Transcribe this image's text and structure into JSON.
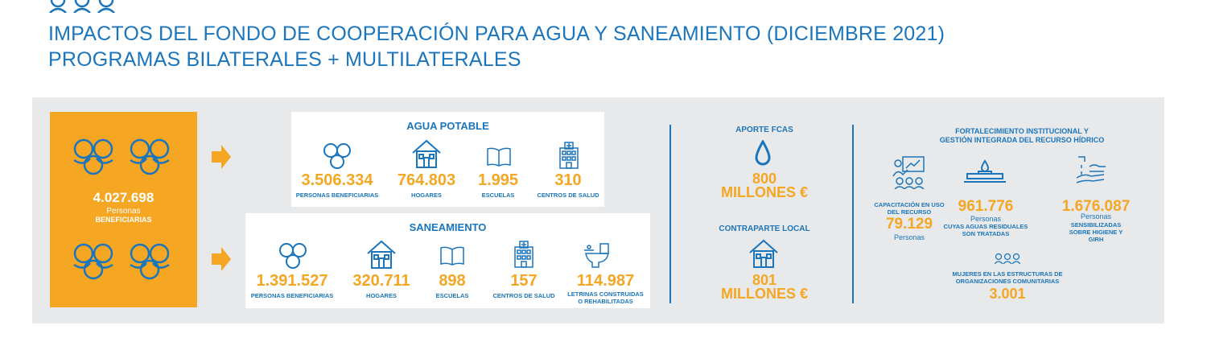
{
  "header": {
    "title_line1": "IMPACTOS DEL FONDO DE COOPERACIÓN PARA AGUA Y SANEAMIENTO (DICIEMBRE 2021)",
    "title_line2": "PROGRAMAS BILATERALES + MULTILATERALES",
    "icon": "people-group-icon"
  },
  "colors": {
    "blue": "#1b75bc",
    "orange": "#f5a623",
    "panel": "#e8e9eb"
  },
  "total": {
    "value": "4.027.698",
    "unit": "Personas",
    "label": "BENEFICIARIAS"
  },
  "agua": {
    "title": "AGUA POTABLE",
    "items": [
      {
        "value": "3.506.334",
        "label": "PERSONAS BENEFICIARIAS",
        "icon": "people-icon"
      },
      {
        "value": "764.803",
        "label": "HOGARES",
        "icon": "house-icon"
      },
      {
        "value": "1.995",
        "label": "ESCUELAS",
        "icon": "book-icon"
      },
      {
        "value": "310",
        "label": "CENTROS DE SALUD",
        "icon": "hospital-icon"
      }
    ]
  },
  "saneamiento": {
    "title": "SANEAMIENTO",
    "items": [
      {
        "value": "1.391.527",
        "label": "PERSONAS BENEFICIARIAS",
        "icon": "people-icon"
      },
      {
        "value": "320.711",
        "label": "HOGARES",
        "icon": "house-icon"
      },
      {
        "value": "898",
        "label": "ESCUELAS",
        "icon": "book-icon"
      },
      {
        "value": "157",
        "label": "CENTROS DE SALUD",
        "icon": "hospital-icon"
      },
      {
        "value": "114.987",
        "label_line1": "LETRINAS CONSTRUIDAS",
        "label_line2": "O REHABILITADAS",
        "icon": "toilet-icon"
      }
    ]
  },
  "aporte": {
    "title": "APORTE FCAS",
    "value": "800",
    "unit": "MILLONES €",
    "icon": "water-drop-icon"
  },
  "contraparte": {
    "title": "CONTRAPARTE LOCAL",
    "value": "801",
    "unit": "MILLONES €",
    "icon": "house-icon"
  },
  "fortalecimiento": {
    "title_line1": "FORTALECIMIENTO INSTITUCIONAL Y",
    "title_line2": "GESTIÓN INTEGRADA DEL RECURSO HÍDRICO",
    "capacitacion": {
      "label_line1": "CAPACITACIÓN EN USO",
      "label_line2": "DEL RECURSO",
      "value": "79.129",
      "unit": "Personas",
      "icon": "training-icon"
    },
    "aguas_residuales": {
      "value": "961.776",
      "unit": "Personas",
      "label_line1": "CUYAS AGUAS RESIDUALES",
      "label_line2": "SON TRATADAS",
      "icon": "water-treatment-icon"
    },
    "higiene": {
      "value": "1.676.087",
      "unit": "Personas",
      "label_line1": "SENSIBILIZADAS",
      "label_line2": "SOBRE HIGIENE Y",
      "label_line3": "GIRH",
      "icon": "handwashing-icon"
    },
    "mujeres": {
      "label_line1": "MUJERES EN LAS ESTRUCTURAS DE",
      "label_line2": "ORGANIZACIONES COMUNITARIAS",
      "value": "3.001",
      "icon": "women-group-icon"
    }
  }
}
